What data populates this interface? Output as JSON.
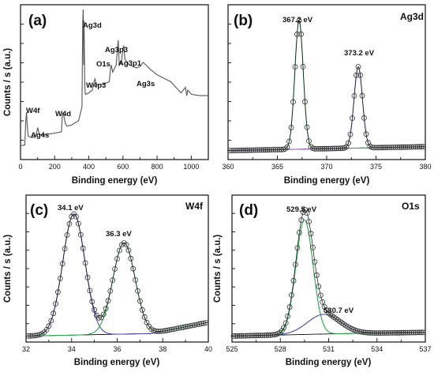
{
  "chart_data": [
    {
      "type": "line",
      "panel_label": "(a)",
      "xlabel": "Binding energy (eV)",
      "ylabel": "Counts / s (a.u.)",
      "xlim": [
        0,
        1100
      ],
      "xticks": [
        "0",
        "200",
        "400",
        "600",
        "800",
        "1000"
      ],
      "ylim": [
        0,
        100
      ],
      "y_tick_labels_shown": false,
      "series": [
        {
          "color": "#555555",
          "x": [
            0,
            25,
            31,
            35,
            39,
            45,
            60,
            85,
            95,
            101,
            110,
            140,
            200,
            240,
            245,
            250,
            256,
            262,
            272,
            300,
            340,
            360,
            364,
            367,
            370,
            372,
            376,
            380,
            400,
            420,
            430,
            436,
            445,
            480,
            500,
            520,
            528,
            531,
            540,
            560,
            568,
            572,
            578,
            590,
            600,
            604,
            612,
            640,
            680,
            700,
            718,
            735,
            760,
            800,
            880,
            940,
            966,
            974,
            980,
            1000,
            1050,
            1100
          ],
          "y": [
            2,
            2.5,
            20,
            26,
            18,
            9,
            8,
            8,
            12,
            15,
            10,
            10,
            11,
            12,
            24,
            26,
            22,
            18,
            16,
            17,
            20,
            30,
            90,
            100,
            60,
            92,
            45,
            39,
            40,
            42,
            47,
            50,
            46,
            46,
            47,
            48,
            58,
            60,
            55,
            60,
            72,
            78,
            60,
            62,
            72,
            74,
            64,
            60,
            58,
            59,
            62,
            60,
            57,
            53,
            48,
            40,
            44,
            38,
            42,
            39,
            38,
            38
          ]
        }
      ],
      "annotations": [
        {
          "text": "Ag3d",
          "x": 367
        },
        {
          "text": "Ag3p3",
          "x": 573
        },
        {
          "text": "Ag3p1",
          "x": 604
        },
        {
          "text": "O1s",
          "x": 530
        },
        {
          "text": "W4p3",
          "x": 423
        },
        {
          "text": "Ag3s",
          "x": 718
        },
        {
          "text": "W4d",
          "x": 248
        },
        {
          "text": "W4f",
          "x": 35
        },
        {
          "text": "Ag4s",
          "x": 97
        }
      ]
    },
    {
      "type": "scatter",
      "panel_label": "(b)",
      "panel_tag": "Ag3d",
      "xlabel": "Binding energy (eV)",
      "ylabel": "",
      "xlim": [
        360,
        380
      ],
      "xticks": [
        "360",
        "365",
        "370",
        "375",
        "380"
      ],
      "ylim": [
        0,
        100
      ],
      "y_tick_labels_shown": false,
      "peaks": [
        {
          "label": "367.2 eV",
          "center": 367.2,
          "height": 98,
          "fwhm": 1.0,
          "color": "#2aa84a"
        },
        {
          "label": "373.2 eV",
          "center": 373.2,
          "height": 62,
          "fwhm": 1.0,
          "color": "#8e5bbf"
        }
      ],
      "background": {
        "color": "#111111",
        "x": [
          360,
          380
        ],
        "y": [
          2,
          5
        ]
      },
      "data_points": {
        "x_start": 360.2,
        "x_end": 379.8,
        "step": 0.2,
        "marker_color": "#333333"
      },
      "envelope_color": "#111111"
    },
    {
      "type": "scatter",
      "panel_label": "(c)",
      "panel_tag": "W4f",
      "xlabel": "Binding energy (eV)",
      "ylabel": "Counts / s (a.u.)",
      "xlim": [
        32,
        40
      ],
      "xticks": [
        "32",
        "34",
        "36",
        "38",
        "40"
      ],
      "ylim": [
        0,
        100
      ],
      "y_tick_labels_shown": false,
      "peaks": [
        {
          "label": "34.1 eV",
          "center": 34.1,
          "height": 97,
          "fwhm": 1.15,
          "color": "#4a4aa8"
        },
        {
          "label": "36.3 eV",
          "center": 36.3,
          "height": 73,
          "fwhm": 1.15,
          "color": "#2aa84a"
        }
      ],
      "background": {
        "color": "#111111",
        "x": [
          32,
          37.5,
          40
        ],
        "y": [
          1,
          3,
          12
        ]
      },
      "data_points": {
        "x_start": 32.1,
        "x_end": 39.95,
        "step": 0.1,
        "marker_color": "#333333"
      },
      "envelope_color": "#111111"
    },
    {
      "type": "scatter",
      "panel_label": "(d)",
      "panel_tag": "O1s",
      "xlabel": "Binding energy (eV)",
      "ylabel": "Counts / s (a.u.)",
      "xlim": [
        525,
        537
      ],
      "xticks": [
        "525",
        "528",
        "531",
        "534",
        "537"
      ],
      "ylim": [
        0,
        100
      ],
      "y_tick_labels_shown": false,
      "peaks": [
        {
          "label": "529.5 eV",
          "center": 529.5,
          "height": 93,
          "fwhm": 1.25,
          "color": "#2aa84a"
        },
        {
          "label": "530.7 eV",
          "center": 530.7,
          "height": 16,
          "fwhm": 2.4,
          "color": "#4a4aa8"
        }
      ],
      "background": {
        "color": "#111111",
        "x": [
          525,
          532,
          537
        ],
        "y": [
          1,
          3,
          4
        ]
      },
      "data_points": {
        "x_start": 525.1,
        "x_end": 536.9,
        "step": 0.12,
        "marker_color": "#333333"
      },
      "envelope_color": "#111111"
    }
  ]
}
